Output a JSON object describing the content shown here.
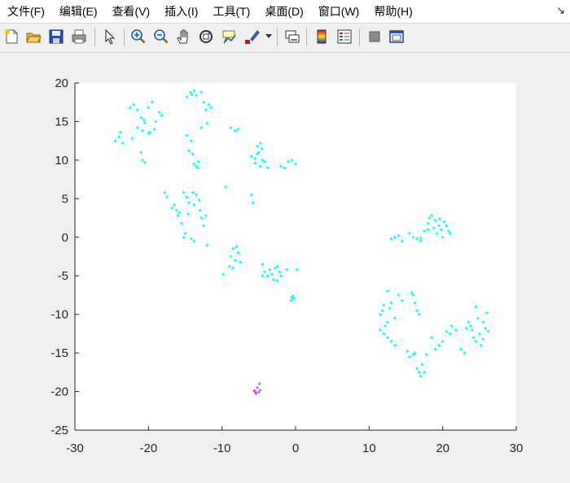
{
  "menu": {
    "items": [
      {
        "label": "文件(F)"
      },
      {
        "label": "编辑(E)"
      },
      {
        "label": "查看(V)"
      },
      {
        "label": "插入(I)"
      },
      {
        "label": "工具(T)"
      },
      {
        "label": "桌面(D)"
      },
      {
        "label": "窗口(W)"
      },
      {
        "label": "帮助(H)"
      }
    ],
    "undock_glyph": "↘"
  },
  "toolbar": {
    "icons": [
      "new-figure-icon",
      "open-file-icon",
      "save-icon",
      "print-icon",
      "pointer-icon",
      "zoom-in-icon",
      "zoom-out-icon",
      "pan-icon",
      "rotate-3d-icon",
      "data-cursor-icon",
      "brush-icon",
      "brush-dropdown-icon",
      "link-plot-icon",
      "colorbar-icon",
      "legend-icon",
      "hide-plot-tools-icon",
      "show-plot-tools-icon"
    ]
  },
  "chart_data": {
    "type": "scatter",
    "xlim": [
      -30,
      30
    ],
    "ylim": [
      -25,
      20
    ],
    "xticks": [
      -30,
      -20,
      -10,
      0,
      10,
      20,
      30
    ],
    "yticks": [
      -25,
      -20,
      -15,
      -10,
      -5,
      0,
      5,
      10,
      15,
      20
    ],
    "xtick_labels": [
      "-30",
      "-20",
      "-10",
      "0",
      "10",
      "20",
      "30"
    ],
    "ytick_labels": [
      "-25",
      "-20",
      "-15",
      "-10",
      "-5",
      "0",
      "5",
      "10",
      "15",
      "20"
    ],
    "grid": false,
    "series": [
      {
        "color": "#00ffff",
        "points": [
          [
            -24.5,
            12.5
          ],
          [
            -24,
            13
          ],
          [
            -23.5,
            12.2
          ],
          [
            -23.8,
            13.6
          ],
          [
            -22.5,
            16.8
          ],
          [
            -22,
            17.2
          ],
          [
            -21.5,
            16.5
          ],
          [
            -21,
            15.5
          ],
          [
            -21.5,
            14.2
          ],
          [
            -20.8,
            13.8
          ],
          [
            -20.5,
            14.8
          ],
          [
            -20,
            13.5
          ],
          [
            -20,
            16.8
          ],
          [
            -19.5,
            17.5
          ],
          [
            -19,
            15
          ],
          [
            -19.2,
            14
          ],
          [
            -18.5,
            16.2
          ],
          [
            -18.2,
            15.8
          ],
          [
            -21,
            11
          ],
          [
            -20.8,
            10
          ],
          [
            -20.5,
            9.7
          ],
          [
            -22.2,
            12.8
          ],
          [
            -19.8,
            13.6
          ],
          [
            -20.6,
            15.2
          ],
          [
            -14.8,
            18.2
          ],
          [
            -14.3,
            18.8
          ],
          [
            -13.8,
            19
          ],
          [
            -13.5,
            18.4
          ],
          [
            -12.8,
            18.8
          ],
          [
            -12.5,
            17.5
          ],
          [
            -12.2,
            16.5
          ],
          [
            -11.8,
            17.2
          ],
          [
            -12,
            14.8
          ],
          [
            -11.5,
            16.8
          ],
          [
            -14.8,
            13.2
          ],
          [
            -14.2,
            12.5
          ],
          [
            -14.5,
            11.2
          ],
          [
            -14,
            10.8
          ],
          [
            -13.8,
            9.5
          ],
          [
            -13.5,
            9.2
          ],
          [
            -13.2,
            9.8
          ],
          [
            -12.8,
            14.2
          ],
          [
            -14.1,
            18.5
          ],
          [
            -13.3,
            9
          ],
          [
            -8.8,
            14.2
          ],
          [
            -8.2,
            13.8
          ],
          [
            -7.8,
            14
          ],
          [
            -6,
            10.5
          ],
          [
            -5.5,
            10.2
          ],
          [
            -5.2,
            11.8
          ],
          [
            -4.8,
            12.2
          ],
          [
            -5,
            11
          ],
          [
            -4.5,
            10
          ],
          [
            -4.2,
            9.8
          ],
          [
            -4.8,
            9.2
          ],
          [
            -5.5,
            9.6
          ],
          [
            -5.2,
            10.8
          ],
          [
            -3.8,
            9
          ],
          [
            -2,
            9.2
          ],
          [
            -1.5,
            9
          ],
          [
            -1,
            9.8
          ],
          [
            -0.5,
            10
          ],
          [
            0,
            9.5
          ],
          [
            -4.6,
            11.5
          ],
          [
            -17.8,
            5.8
          ],
          [
            -17.5,
            5.2
          ],
          [
            -16.5,
            4.2
          ],
          [
            -16.2,
            3.5
          ],
          [
            -15.8,
            3.2
          ],
          [
            -15.2,
            5.8
          ],
          [
            -14.8,
            5.2
          ],
          [
            -14.5,
            4.5
          ],
          [
            -14,
            5.8
          ],
          [
            -13.8,
            4.2
          ],
          [
            -13.5,
            5.5
          ],
          [
            -13,
            3.5
          ],
          [
            -12.8,
            2.5
          ],
          [
            -12.5,
            1.5
          ],
          [
            -16,
            2.8
          ],
          [
            -15.5,
            1.8
          ],
          [
            -15,
            0.5
          ],
          [
            -15.2,
            0
          ],
          [
            -14.2,
            -0.2
          ],
          [
            -13.8,
            -0.5
          ],
          [
            -12,
            -1
          ],
          [
            -16.8,
            3.8
          ],
          [
            -14.6,
            3
          ],
          [
            -13.1,
            4.8
          ],
          [
            -12.2,
            2.8
          ],
          [
            -8.5,
            -1.5
          ],
          [
            -8,
            -1.2
          ],
          [
            -8.8,
            -2.5
          ],
          [
            -8.2,
            -3
          ],
          [
            -7.5,
            -3.2
          ],
          [
            -8.5,
            -4
          ],
          [
            -9,
            -3.8
          ],
          [
            -9.8,
            -4.8
          ],
          [
            -7.8,
            -2
          ],
          [
            -9.5,
            6.5
          ],
          [
            -6,
            5.5
          ],
          [
            -5.8,
            4.5
          ],
          [
            -4.5,
            -3.5
          ],
          [
            -4.2,
            -4.5
          ],
          [
            -3.5,
            -4.2
          ],
          [
            -3.2,
            -4.8
          ],
          [
            -3,
            -5.5
          ],
          [
            -2.8,
            -4
          ],
          [
            -2.5,
            -3.8
          ],
          [
            -2.2,
            -4.5
          ],
          [
            -2,
            -5
          ],
          [
            -3.8,
            -5
          ],
          [
            -4.5,
            -5
          ],
          [
            -1.2,
            -4.2
          ],
          [
            0.2,
            -4.2
          ],
          [
            -2.5,
            -5.6
          ],
          [
            -0.5,
            -7.8
          ],
          [
            -0.3,
            -8
          ],
          [
            -0.6,
            -8.2
          ],
          [
            -0.4,
            -7.6
          ],
          [
            -0.2,
            -7.9
          ],
          [
            12.5,
            -7
          ],
          [
            12,
            -8.8
          ],
          [
            11.8,
            -9.5
          ],
          [
            11.5,
            -10
          ],
          [
            13,
            -8.5
          ],
          [
            12.8,
            -9.2
          ],
          [
            13.5,
            -10.5
          ],
          [
            12.5,
            -11
          ],
          [
            12.2,
            -11.5
          ],
          [
            11.5,
            -12
          ],
          [
            12,
            -12.5
          ],
          [
            12.5,
            -13
          ],
          [
            13,
            -13.5
          ],
          [
            13.5,
            -14
          ],
          [
            14,
            -7.5
          ],
          [
            14.5,
            -8.2
          ],
          [
            15.8,
            -7.2
          ],
          [
            16,
            -7.5
          ],
          [
            16.2,
            -8.5
          ],
          [
            16.5,
            -9.5
          ],
          [
            16.8,
            -10
          ],
          [
            15.2,
            -14.8
          ],
          [
            15.5,
            -15.5
          ],
          [
            16,
            -15.2
          ],
          [
            16.2,
            -15
          ],
          [
            16.5,
            -17
          ],
          [
            16.8,
            -17.5
          ],
          [
            17,
            -18
          ],
          [
            17.5,
            -17.5
          ],
          [
            17.2,
            -16.5
          ],
          [
            17.8,
            -15.2
          ],
          [
            18.5,
            -13
          ],
          [
            19,
            -14.5
          ],
          [
            19.5,
            -14
          ],
          [
            20,
            -13.5
          ],
          [
            20.5,
            -12.2
          ],
          [
            21,
            -12.5
          ],
          [
            21.2,
            -11.5
          ],
          [
            21.8,
            -12
          ],
          [
            22.5,
            -14.5
          ],
          [
            23,
            -15
          ],
          [
            23.5,
            -11
          ],
          [
            23.8,
            -11.5
          ],
          [
            24,
            -12
          ],
          [
            24.2,
            -13
          ],
          [
            24.5,
            -13.5
          ],
          [
            24.8,
            -10.5
          ],
          [
            25,
            -12.5
          ],
          [
            25.2,
            -14
          ],
          [
            25.5,
            -11
          ],
          [
            25.8,
            -11.8
          ],
          [
            26,
            -9.8
          ],
          [
            26.2,
            -12.2
          ],
          [
            24.5,
            -9
          ],
          [
            25.5,
            -13.2
          ],
          [
            23.2,
            -11.8
          ],
          [
            13,
            -0.2
          ],
          [
            13.5,
            0
          ],
          [
            14,
            0.2
          ],
          [
            14.5,
            -0.5
          ],
          [
            15.5,
            0.5
          ],
          [
            16,
            0
          ],
          [
            16.5,
            -0.2
          ],
          [
            17,
            -0.5
          ],
          [
            17.5,
            0.8
          ],
          [
            18,
            1.8
          ],
          [
            18.2,
            2.5
          ],
          [
            18.5,
            2.8
          ],
          [
            19,
            2.2
          ],
          [
            19.5,
            1.5
          ],
          [
            19.2,
            0.5
          ],
          [
            19.8,
            1
          ],
          [
            20,
            0
          ],
          [
            20.2,
            2
          ],
          [
            20.5,
            1.5
          ],
          [
            20.8,
            0.8
          ],
          [
            21,
            0.5
          ],
          [
            18.8,
            1.2
          ],
          [
            18,
            1
          ],
          [
            19.6,
            2.4
          ],
          [
            17,
            -0.1
          ]
        ]
      },
      {
        "color": "#8080ff",
        "points": [
          [
            -5.2,
            -19.5
          ],
          [
            -4.9,
            -19
          ],
          [
            -4.8,
            -19.8
          ],
          [
            -5,
            -20.1
          ]
        ]
      },
      {
        "color": "#ff00ff",
        "points": [
          [
            -5.4,
            -20.2
          ],
          [
            -5.6,
            -19.9
          ]
        ]
      }
    ]
  }
}
